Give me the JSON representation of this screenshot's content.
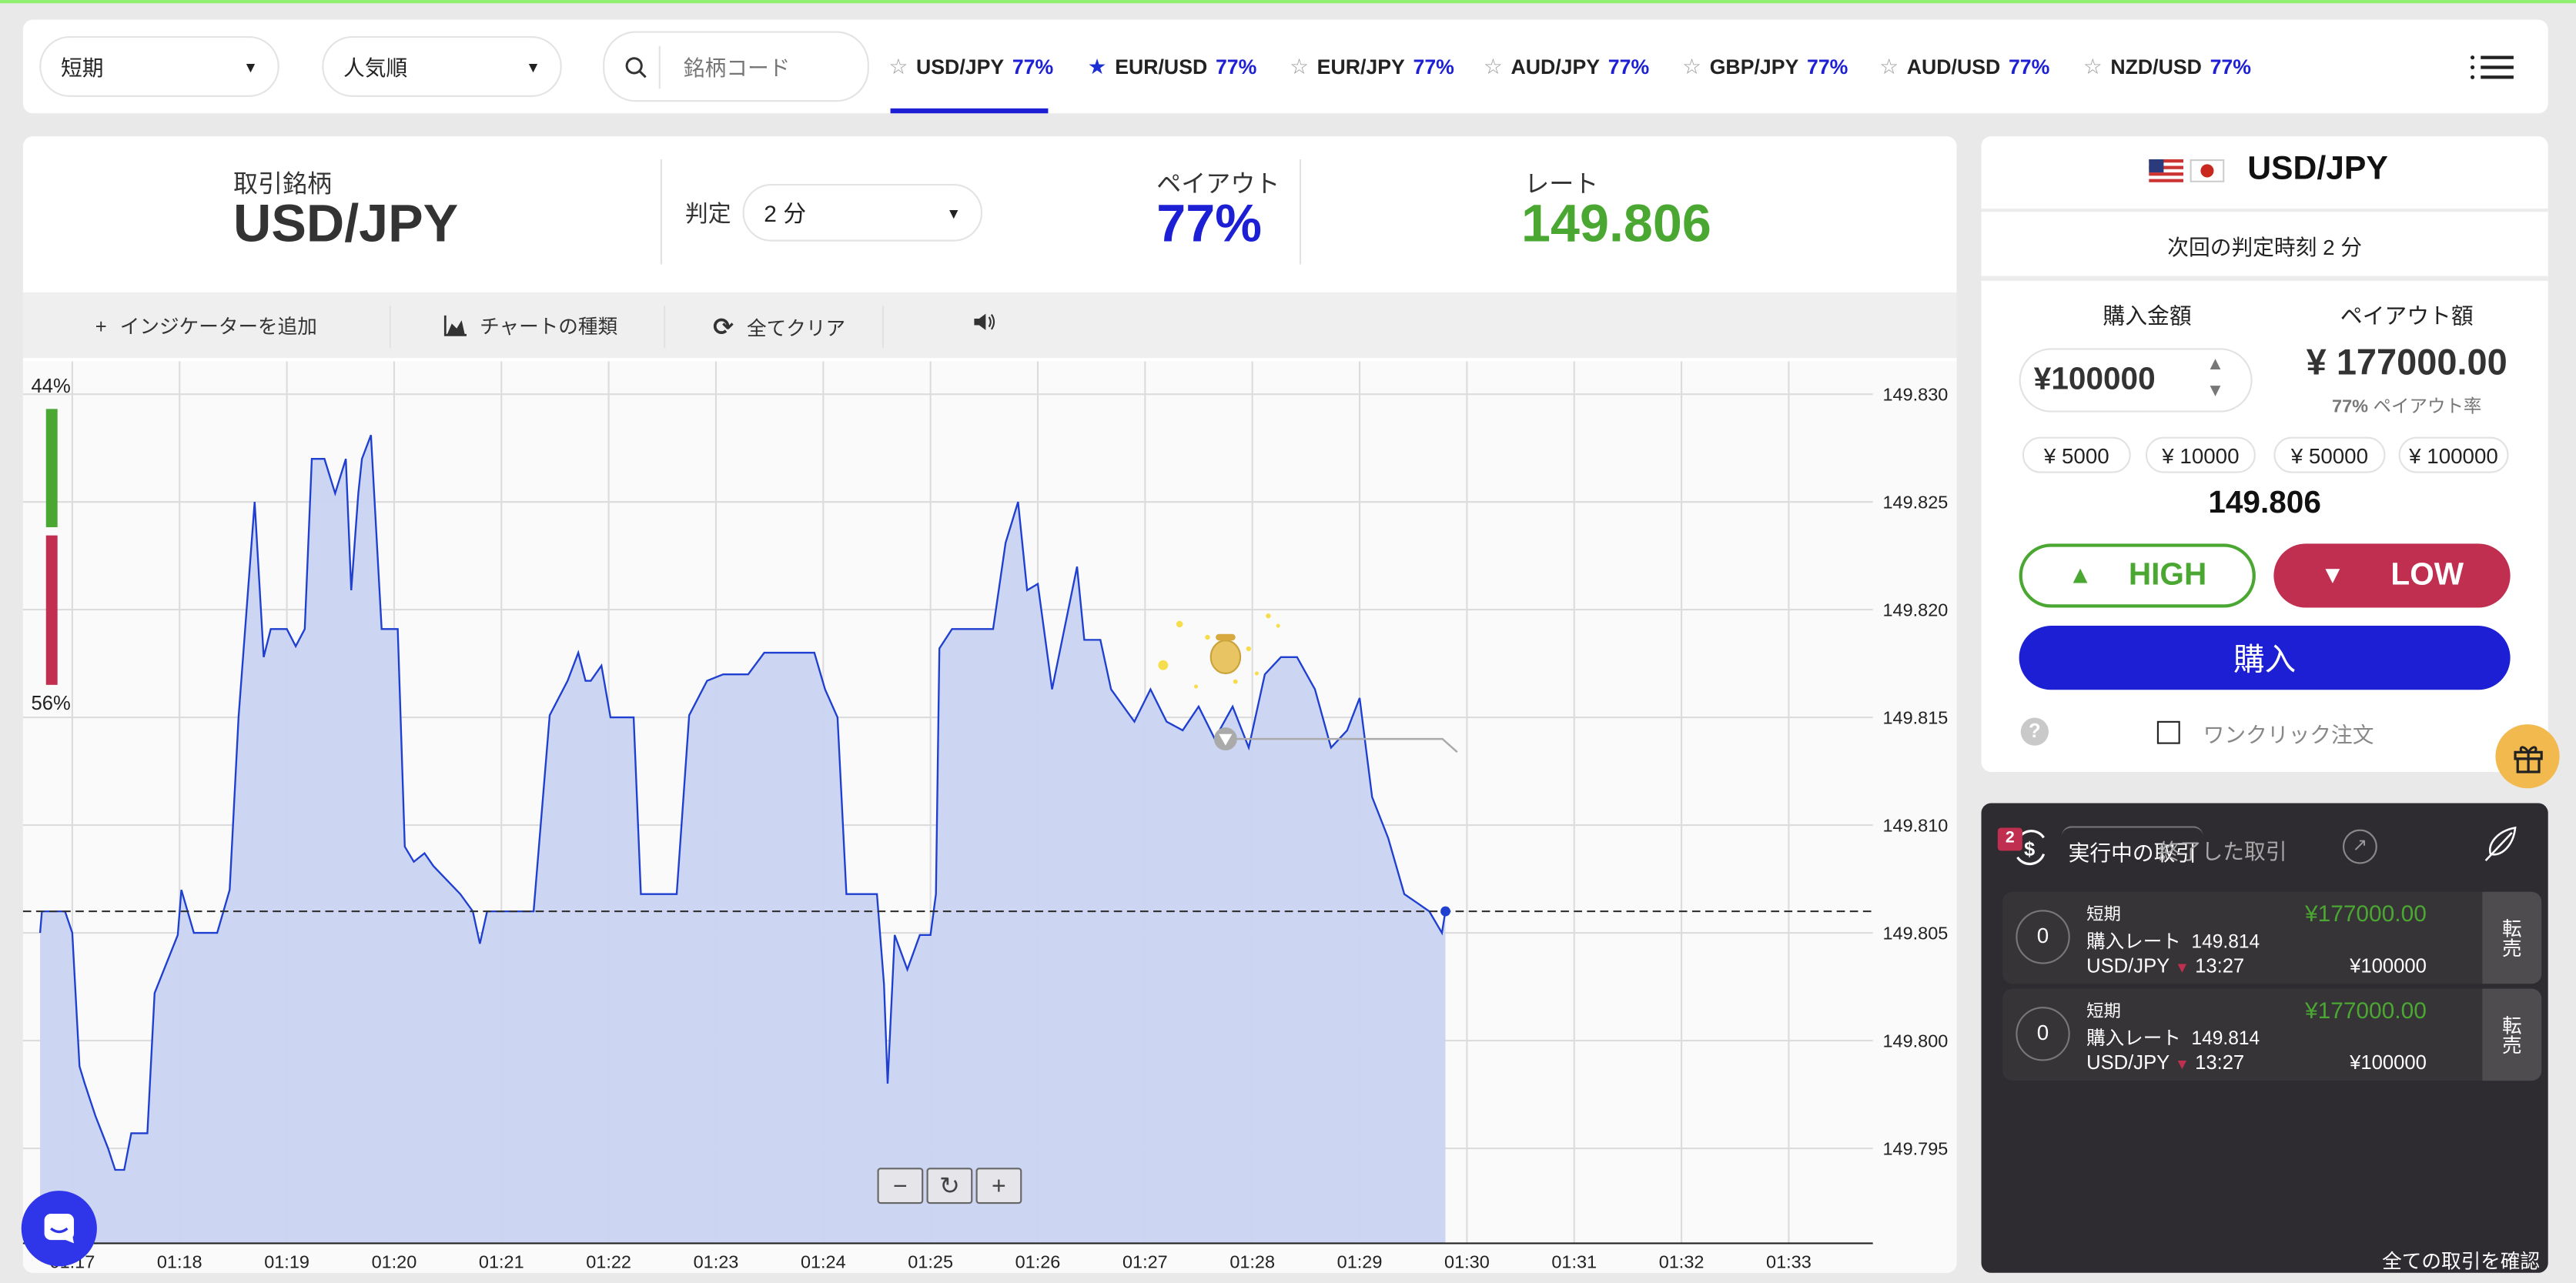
{
  "topbar": {
    "period_select": "短期",
    "sort_select": "人気順",
    "search_placeholder": "銘柄コード",
    "tabs": [
      {
        "pair": "USD/JPY",
        "payout": "77%",
        "starred": false,
        "active": true
      },
      {
        "pair": "EUR/USD",
        "payout": "77%",
        "starred": true,
        "active": false
      },
      {
        "pair": "EUR/JPY",
        "payout": "77%",
        "starred": false,
        "active": false
      },
      {
        "pair": "AUD/JPY",
        "payout": "77%",
        "starred": false,
        "active": false
      },
      {
        "pair": "GBP/JPY",
        "payout": "77%",
        "starred": false,
        "active": false
      },
      {
        "pair": "AUD/USD",
        "payout": "77%",
        "starred": false,
        "active": false
      },
      {
        "pair": "NZD/USD",
        "payout": "77%",
        "starred": false,
        "active": false
      }
    ]
  },
  "header": {
    "symbol_label": "取引銘柄",
    "symbol": "USD/JPY",
    "expiry_label": "判定",
    "expiry_value": "2 分",
    "payout_label": "ペイアウト",
    "payout": "77%",
    "rate_label": "レート",
    "rate": "149.806"
  },
  "toolbar": {
    "add_indicator": "インジケーターを追加",
    "chart_type": "チャートの種類",
    "clear_all": "全てクリア"
  },
  "sentiment": {
    "high_pct": "44%",
    "low_pct": "56%",
    "high_value": 44,
    "low_value": 56
  },
  "chart_data": {
    "type": "area",
    "x_ticks": [
      "01:17",
      "01:18",
      "01:19",
      "01:20",
      "01:21",
      "01:22",
      "01:23",
      "01:24",
      "01:25",
      "01:26",
      "01:27",
      "01:28",
      "01:29",
      "01:30",
      "01:31",
      "01:32",
      "01:33"
    ],
    "y_ticks": [
      "149.830",
      "149.825",
      "149.820",
      "149.815",
      "149.810",
      "149.805",
      "149.800",
      "149.795"
    ],
    "ylim": [
      149.7915,
      149.8315
    ],
    "current_price": 149.806,
    "trade_entry": {
      "time": "01:27:45",
      "rate": 149.814,
      "direction": "low"
    },
    "grid": true,
    "series": [
      [
        "01:16:42",
        149.805
      ],
      [
        "01:16:43",
        149.806
      ],
      [
        "01:16:56",
        149.806
      ],
      [
        "01:17:00",
        149.805
      ],
      [
        "01:17:04",
        149.7988
      ],
      [
        "01:17:07",
        149.798
      ],
      [
        "01:17:13",
        149.7965
      ],
      [
        "01:17:20",
        149.795
      ],
      [
        "01:17:24",
        149.794
      ],
      [
        "01:17:29",
        149.794
      ],
      [
        "01:17:33",
        149.7957
      ],
      [
        "01:17:42",
        149.7957
      ],
      [
        "01:17:46",
        149.8022
      ],
      [
        "01:17:59",
        149.8049
      ],
      [
        "01:18:01",
        149.807
      ],
      [
        "01:18:08",
        149.805
      ],
      [
        "01:18:21",
        149.805
      ],
      [
        "01:18:28",
        149.807
      ],
      [
        "01:18:33",
        149.815
      ],
      [
        "01:18:42",
        149.825
      ],
      [
        "01:18:47",
        149.8178
      ],
      [
        "01:18:51",
        149.8191
      ],
      [
        "01:19:00",
        149.8191
      ],
      [
        "01:19:05",
        149.8183
      ],
      [
        "01:19:10",
        149.8191
      ],
      [
        "01:19:14",
        149.827
      ],
      [
        "01:19:21",
        149.827
      ],
      [
        "01:19:27",
        149.8254
      ],
      [
        "01:19:33",
        149.827
      ],
      [
        "01:19:36",
        149.8209
      ],
      [
        "01:19:40",
        149.8254
      ],
      [
        "01:19:42",
        149.827
      ],
      [
        "01:19:47",
        149.8281
      ],
      [
        "01:19:53",
        149.8191
      ],
      [
        "01:20:02",
        149.8191
      ],
      [
        "01:20:06",
        149.809
      ],
      [
        "01:20:11",
        149.8083
      ],
      [
        "01:20:17",
        149.8087
      ],
      [
        "01:20:22",
        149.8081
      ],
      [
        "01:20:37",
        149.8068
      ],
      [
        "01:20:44",
        149.806
      ],
      [
        "01:20:48",
        149.8045
      ],
      [
        "01:20:52",
        149.806
      ],
      [
        "01:21:18",
        149.806
      ],
      [
        "01:21:27",
        149.8151
      ],
      [
        "01:21:37",
        149.8167
      ],
      [
        "01:21:43",
        149.818
      ],
      [
        "01:21:47",
        149.8167
      ],
      [
        "01:21:50",
        149.8167
      ],
      [
        "01:21:56",
        149.8174
      ],
      [
        "01:22:01",
        149.815
      ],
      [
        "01:22:14",
        149.815
      ],
      [
        "01:22:18",
        149.8068
      ],
      [
        "01:22:38",
        149.8068
      ],
      [
        "01:22:45",
        149.8151
      ],
      [
        "01:22:55",
        149.8167
      ],
      [
        "01:23:04",
        149.817
      ],
      [
        "01:23:18",
        149.817
      ],
      [
        "01:23:27",
        149.818
      ],
      [
        "01:23:41",
        149.818
      ],
      [
        "01:23:55",
        149.818
      ],
      [
        "01:24:01",
        149.8163
      ],
      [
        "01:24:08",
        149.815
      ],
      [
        "01:24:13",
        149.8068
      ],
      [
        "01:24:30",
        149.8068
      ],
      [
        "01:24:34",
        149.8026
      ],
      [
        "01:24:36",
        149.798
      ],
      [
        "01:24:40",
        149.8049
      ],
      [
        "01:24:47",
        149.8033
      ],
      [
        "01:24:54",
        149.8049
      ],
      [
        "01:25:00",
        149.8049
      ],
      [
        "01:25:03",
        149.8068
      ],
      [
        "01:25:05",
        149.8182
      ],
      [
        "01:25:12",
        149.8191
      ],
      [
        "01:25:35",
        149.8191
      ],
      [
        "01:25:42",
        149.8231
      ],
      [
        "01:25:49",
        149.825
      ],
      [
        "01:25:54",
        149.8209
      ],
      [
        "01:26:00",
        149.8212
      ],
      [
        "01:26:08",
        149.8163
      ],
      [
        "01:26:22",
        149.822
      ],
      [
        "01:26:26",
        149.8186
      ],
      [
        "01:26:35",
        149.8186
      ],
      [
        "01:26:41",
        149.8163
      ],
      [
        "01:26:54",
        149.8148
      ],
      [
        "01:27:03",
        149.8163
      ],
      [
        "01:27:12",
        149.8148
      ],
      [
        "01:27:21",
        149.8144
      ],
      [
        "01:27:30",
        149.8155
      ],
      [
        "01:27:39",
        149.814
      ],
      [
        "01:27:49",
        149.8155
      ],
      [
        "01:27:58",
        149.8136
      ],
      [
        "01:28:07",
        149.817
      ],
      [
        "01:28:16",
        149.8178
      ],
      [
        "01:28:25",
        149.8178
      ],
      [
        "01:28:35",
        149.8163
      ],
      [
        "01:28:44",
        149.8136
      ],
      [
        "01:28:53",
        149.8144
      ],
      [
        "01:29:00",
        149.8159
      ],
      [
        "01:29:07",
        149.8113
      ],
      [
        "01:29:16",
        149.8094
      ],
      [
        "01:29:25",
        149.8068
      ],
      [
        "01:29:32",
        149.8064
      ],
      [
        "01:29:39",
        149.806
      ],
      [
        "01:29:46",
        149.805
      ],
      [
        "01:29:48",
        149.806
      ]
    ],
    "colors": {
      "line": "#1f3fd0",
      "fill": "#c9d3f0"
    }
  },
  "order_panel": {
    "pair": "USD/JPY",
    "next_expiry": "次回の判定時刻 2 分",
    "amount_label": "購入金額",
    "payout_amount_label": "ペイアウト額",
    "amount": "¥100000",
    "payout_amount": "¥ 177000.00",
    "payout_rate": "77%",
    "payout_rate_label": "ペイアウト率",
    "chips": [
      "¥ 5000",
      "¥ 10000",
      "¥ 50000",
      "¥ 100000"
    ],
    "rate": "149.806",
    "high": "HIGH",
    "low": "LOW",
    "buy": "購入",
    "one_click": "ワンクリック注文",
    "one_click_checked": false
  },
  "trades_panel": {
    "badge": "2",
    "tab_active": "実行中の取引",
    "tab_done": "終了した取引",
    "trades": [
      {
        "count": "0",
        "type": "短期",
        "rate_label": "購入レート",
        "rate": "149.814",
        "pair": "USD/JPY",
        "time": "13:27",
        "payout": "¥177000.00",
        "amount": "¥100000",
        "sell": "転売"
      },
      {
        "count": "0",
        "type": "短期",
        "rate_label": "購入レート",
        "rate": "149.814",
        "pair": "USD/JPY",
        "time": "13:27",
        "payout": "¥177000.00",
        "amount": "¥100000",
        "sell": "転売"
      }
    ],
    "view_all": "全ての取引を確認"
  },
  "colors": {
    "accent_blue": "#1c1fd4",
    "high_green": "#4aa832",
    "low_red": "#c12f50",
    "dark_panel": "#2f2c31"
  }
}
